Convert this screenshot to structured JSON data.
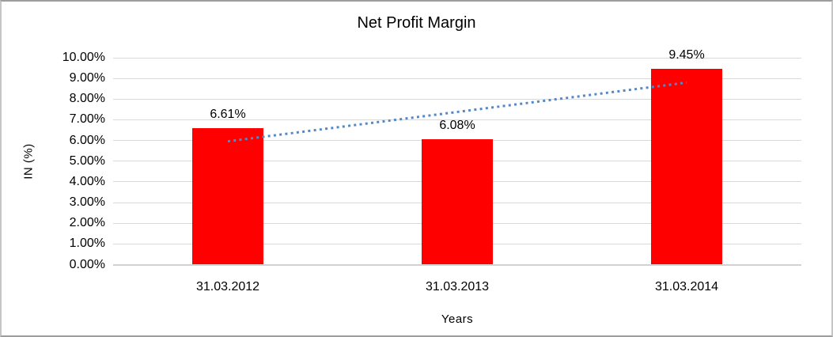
{
  "window": {
    "background": "#FFFFFF",
    "border_color": "#9D9D9D"
  },
  "chart_data": {
    "type": "bar",
    "title": "Net Profit Margin",
    "xlabel": "Years",
    "ylabel": "IN (%)",
    "categories": [
      "31.03.2012",
      "31.03.2013",
      "31.03.2014"
    ],
    "values": [
      6.61,
      6.08,
      9.45
    ],
    "data_labels": [
      "6.61%",
      "6.08%",
      "9.45%"
    ],
    "ylim": [
      0,
      10
    ],
    "ytick_step": 1,
    "ytick_labels": [
      "0.00%",
      "1.00%",
      "2.00%",
      "3.00%",
      "4.00%",
      "5.00%",
      "6.00%",
      "7.00%",
      "8.00%",
      "9.00%",
      "10.00%"
    ],
    "grid": true,
    "legend": "none",
    "bar_color": "#FF0000",
    "gridline_color": "#D9D9D9",
    "axis_line_color": "#D2D2D2",
    "text_color": "#000000",
    "trendline": {
      "type": "linear",
      "style": "dotted",
      "color": "#5489C8"
    }
  }
}
